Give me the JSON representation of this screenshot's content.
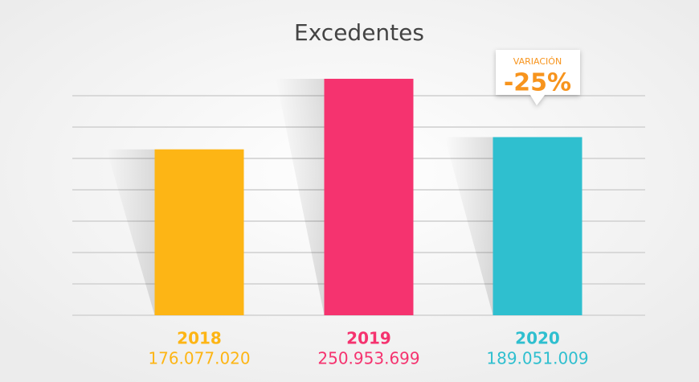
{
  "chart_data": {
    "type": "bar",
    "title": "Excedentes",
    "categories": [
      "2018",
      "2019",
      "2020"
    ],
    "values": [
      176077020,
      250953699,
      189051009
    ],
    "value_labels": [
      "176.077.020",
      "250.953.699",
      "189.051.009"
    ],
    "colors": [
      "#fdb515",
      "#f5336f",
      "#2fbfcf"
    ],
    "ylim": [
      0,
      300000000
    ],
    "grid": true,
    "annotation": {
      "label": "VARIACIÓN",
      "text": "-25%"
    }
  }
}
